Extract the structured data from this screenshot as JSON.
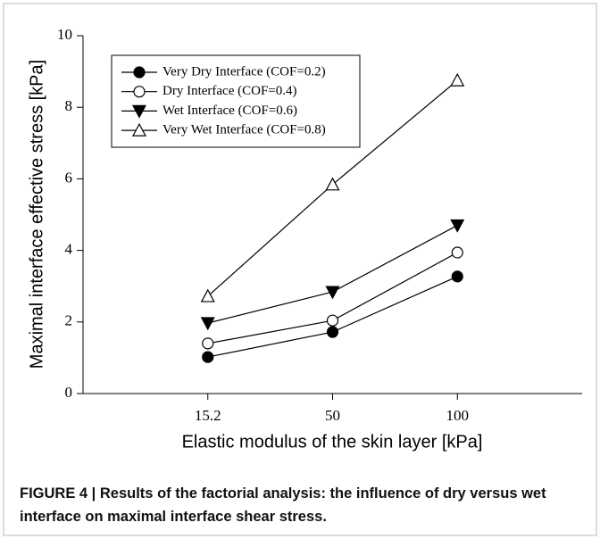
{
  "chart_data": {
    "type": "line",
    "x_label": "Elastic modulus of the skin layer [kPa]",
    "y_label": "Maximal interface effective stress [kPa]",
    "categories": [
      "15.2",
      "50",
      "100"
    ],
    "ylim": [
      0,
      10
    ],
    "yticks": [
      0,
      2,
      4,
      6,
      8,
      10
    ],
    "series": [
      {
        "name": "Very Dry Interface (COF=0.2)",
        "color": "#000000",
        "marker": "circle",
        "filled": true,
        "values": [
          1.02,
          1.72,
          3.27
        ]
      },
      {
        "name": "Dry Interface (COF=0.4)",
        "color": "#000000",
        "marker": "circle",
        "filled": false,
        "values": [
          1.4,
          2.04,
          3.94
        ]
      },
      {
        "name": "Wet Interface (COF=0.6)",
        "color": "#000000",
        "marker": "triangle-down",
        "filled": true,
        "values": [
          1.97,
          2.84,
          4.7
        ]
      },
      {
        "name": "Very Wet Interface (COF=0.8)",
        "color": "#000000",
        "marker": "triangle-up",
        "filled": false,
        "values": [
          2.72,
          5.84,
          8.75
        ]
      }
    ]
  },
  "caption": "FIGURE 4 | Results of the factorial analysis: the influence of dry versus wet interface on maximal interface shear stress."
}
